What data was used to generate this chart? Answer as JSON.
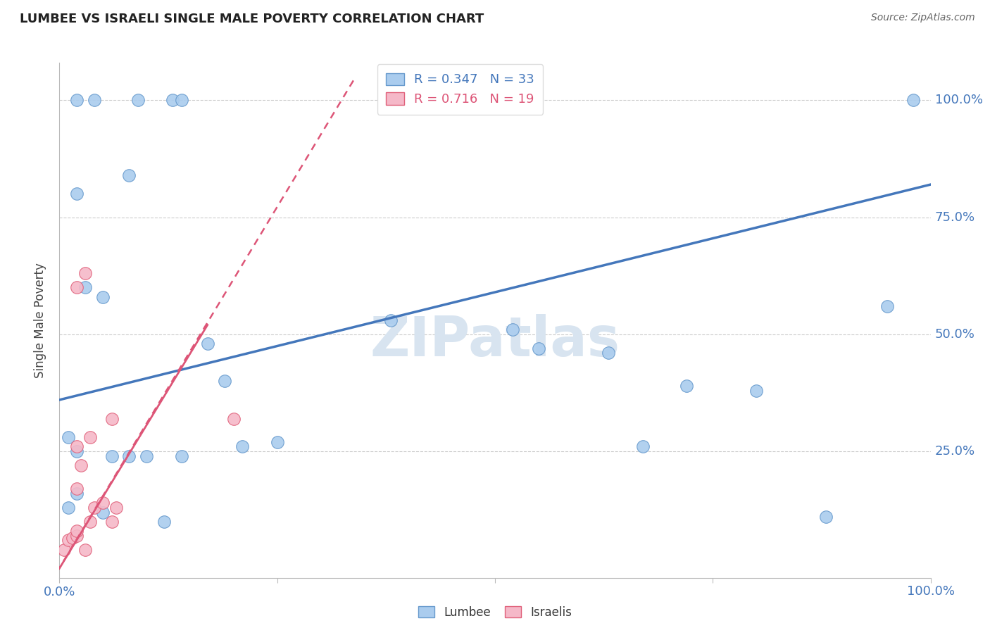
{
  "title": "LUMBEE VS ISRAELI SINGLE MALE POVERTY CORRELATION CHART",
  "source": "Source: ZipAtlas.com",
  "ylabel": "Single Male Poverty",
  "ylabel_right_labels": [
    "100.0%",
    "75.0%",
    "50.0%",
    "25.0%"
  ],
  "ylabel_right_positions": [
    1.0,
    0.75,
    0.5,
    0.25
  ],
  "xlim": [
    0.0,
    1.0
  ],
  "ylim": [
    -0.02,
    1.08
  ],
  "grid_color": "#cccccc",
  "background_color": "#ffffff",
  "lumbee_color": "#aaccee",
  "israeli_color": "#f5b8c8",
  "lumbee_edge_color": "#6699cc",
  "israeli_edge_color": "#e0607a",
  "lumbee_line_color": "#4477bb",
  "israeli_line_color": "#dd5577",
  "lumbee_R": 0.347,
  "lumbee_N": 33,
  "israeli_R": 0.716,
  "israeli_N": 19,
  "lumbee_scatter_x": [
    0.02,
    0.04,
    0.09,
    0.13,
    0.14,
    0.02,
    0.03,
    0.05,
    0.08,
    0.01,
    0.02,
    0.06,
    0.1,
    0.17,
    0.19,
    0.21,
    0.25,
    0.01,
    0.02,
    0.05,
    0.08,
    0.12,
    0.14,
    0.38,
    0.52,
    0.55,
    0.63,
    0.67,
    0.72,
    0.8,
    0.88,
    0.95,
    0.98
  ],
  "lumbee_scatter_y": [
    1.0,
    1.0,
    1.0,
    1.0,
    1.0,
    0.8,
    0.6,
    0.58,
    0.84,
    0.28,
    0.25,
    0.24,
    0.24,
    0.48,
    0.4,
    0.26,
    0.27,
    0.13,
    0.16,
    0.12,
    0.24,
    0.1,
    0.24,
    0.53,
    0.51,
    0.47,
    0.46,
    0.26,
    0.39,
    0.38,
    0.11,
    0.56,
    1.0
  ],
  "israeli_scatter_x": [
    0.005,
    0.01,
    0.015,
    0.02,
    0.02,
    0.02,
    0.025,
    0.03,
    0.035,
    0.04,
    0.05,
    0.06,
    0.065,
    0.02,
    0.035,
    0.06,
    0.02,
    0.03,
    0.2
  ],
  "israeli_scatter_y": [
    0.04,
    0.06,
    0.065,
    0.07,
    0.08,
    0.17,
    0.22,
    0.04,
    0.1,
    0.13,
    0.14,
    0.1,
    0.13,
    0.26,
    0.28,
    0.32,
    0.6,
    0.63,
    0.32
  ],
  "lumbee_line_x": [
    0.0,
    1.0
  ],
  "lumbee_line_y": [
    0.36,
    0.82
  ],
  "israeli_line_x": [
    -0.01,
    0.34
  ],
  "israeli_line_y": [
    -0.03,
    1.05
  ],
  "watermark": "ZIPatlas",
  "watermark_color": "#d8e4f0",
  "legend_lumbee": "Lumbee",
  "legend_israelis": "Israelis",
  "tick_color": "#4477bb",
  "axis_color": "#bbbbbb"
}
